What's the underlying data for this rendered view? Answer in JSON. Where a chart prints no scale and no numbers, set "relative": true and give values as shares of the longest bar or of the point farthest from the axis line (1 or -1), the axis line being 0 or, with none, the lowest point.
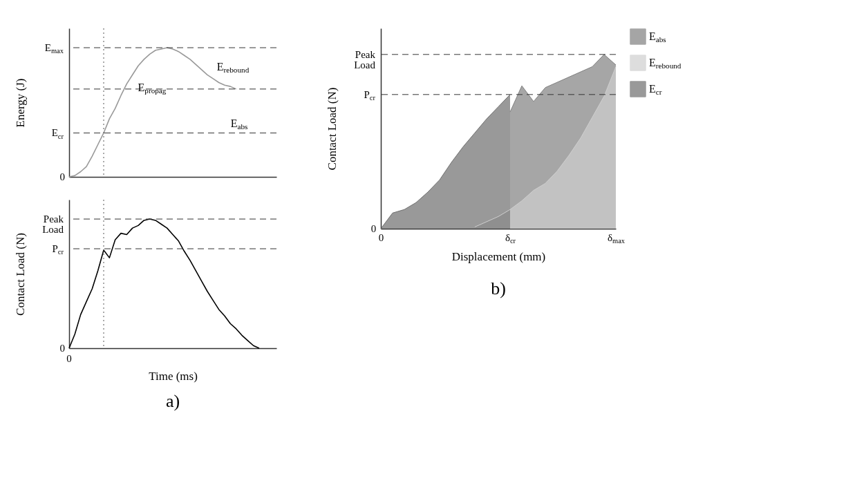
{
  "chart_data": [
    {
      "type": "line",
      "ylabel": "Energy (J)",
      "relative": true,
      "categories": [
        null,
        null,
        null,
        null,
        null,
        null,
        null,
        null,
        null,
        null,
        null,
        null,
        null,
        null,
        null,
        null,
        null,
        null,
        null,
        null,
        null,
        null,
        null,
        null,
        null,
        null,
        null,
        null,
        null,
        null,
        null,
        null,
        null,
        null,
        null,
        null,
        null
      ],
      "series": [
        {
          "color": "#999999",
          "values": [
            0,
            0.01,
            0.04,
            0.08,
            0.16,
            0.25,
            0.34,
            0.45,
            0.53,
            0.63,
            0.72,
            0.79,
            0.86,
            0.91,
            0.95,
            0.98,
            0.99,
            1.0,
            0.99,
            0.97,
            0.94,
            0.91,
            0.87,
            0.83,
            0.79,
            0.76,
            0.73,
            0.71,
            0.7,
            0.68,
            null,
            null,
            null,
            null,
            null,
            null,
            null
          ]
        }
      ],
      "ref_lines": [
        {
          "axis": "y",
          "value": 1.0,
          "label": "E$_{max}$",
          "line_style": "dashed"
        },
        {
          "axis": "y",
          "value": 0.34,
          "label": "E$_{cr}$",
          "line_style": "dashed"
        },
        {
          "axis": "y",
          "value": 0.68,
          "line_style": "dashed"
        }
      ],
      "annotations": [
        "0",
        "E$_{propag}$",
        "E$_{rebound}$",
        "E$_{abs}$"
      ]
    },
    {
      "type": "line",
      "ylabel": "Contact Load (N)",
      "xlabel": "Time (ms)",
      "relative": true,
      "categories": [
        null,
        null,
        null,
        null,
        null,
        null,
        null,
        null,
        null,
        null,
        null,
        null,
        null,
        null,
        null,
        null,
        null,
        null,
        null,
        null,
        null,
        null,
        null,
        null,
        null,
        null,
        null,
        null,
        null,
        null,
        null,
        null,
        null,
        null,
        null,
        null,
        null
      ],
      "series": [
        {
          "color": "#000000",
          "values": [
            0,
            0.11,
            0.26,
            0.36,
            0.46,
            0.6,
            0.76,
            0.7,
            0.84,
            0.89,
            0.88,
            0.93,
            0.95,
            0.99,
            1.0,
            0.99,
            0.96,
            0.93,
            0.88,
            0.83,
            0.75,
            0.68,
            0.6,
            0.52,
            0.44,
            0.37,
            0.3,
            0.25,
            0.19,
            0.15,
            0.1,
            0.06,
            0.02,
            0,
            null,
            null,
            null
          ]
        }
      ],
      "ref_lines": [
        {
          "axis": "y",
          "value": 1.0,
          "label": "Peak Load",
          "line_style": "dashed"
        },
        {
          "axis": "y",
          "value": 0.77,
          "label": "P$_{cr}$",
          "line_style": "dashed"
        }
      ],
      "annotations": [
        "0",
        "0",
        "a)"
      ]
    },
    {
      "type": "area",
      "ylabel": "Contact Load (N)",
      "xlabel": "Displacement (mm)",
      "relative": true,
      "legend": "top right",
      "categories": [
        "0",
        null,
        null,
        null,
        null,
        null,
        null,
        null,
        null,
        null,
        null,
        "δ$_{cr}$",
        null,
        null,
        null,
        null,
        null,
        null,
        null,
        null,
        "δ$_{max}$"
      ],
      "series": [
        {
          "name": "E$_{abs}$",
          "color": "#808080",
          "values": [
            null,
            null,
            null,
            null,
            null,
            null,
            null,
            null,
            null,
            null,
            null,
            0.67,
            0.82,
            0.73,
            0.81,
            0.84,
            0.87,
            0.9,
            0.93,
            1.0,
            0.94
          ]
        },
        {
          "name": "E$_{rebound}$",
          "color": "#cfcfcf",
          "values": [
            null,
            null,
            null,
            null,
            null,
            null,
            null,
            null,
            0.01,
            0.04,
            0.07,
            0.11,
            0.16,
            0.22,
            0.26,
            0.33,
            0.42,
            0.52,
            0.64,
            0.76,
            0.93
          ]
        },
        {
          "name": "E$_{cr}$",
          "color": "#6e6e6e",
          "values": [
            0,
            0.09,
            0.11,
            0.15,
            0.21,
            0.28,
            0.38,
            0.47,
            0.55,
            0.63,
            0.7,
            0.77,
            null,
            null,
            null,
            null,
            null,
            null,
            null,
            null,
            null
          ]
        }
      ],
      "ref_lines": [
        {
          "axis": "y",
          "value": 1.0,
          "label": "Peak Load",
          "line_style": "dashed"
        },
        {
          "axis": "y",
          "value": 0.77,
          "label": "P$_{cr}$",
          "line_style": "dashed"
        }
      ],
      "annotations": [
        "0",
        "b)"
      ]
    }
  ]
}
